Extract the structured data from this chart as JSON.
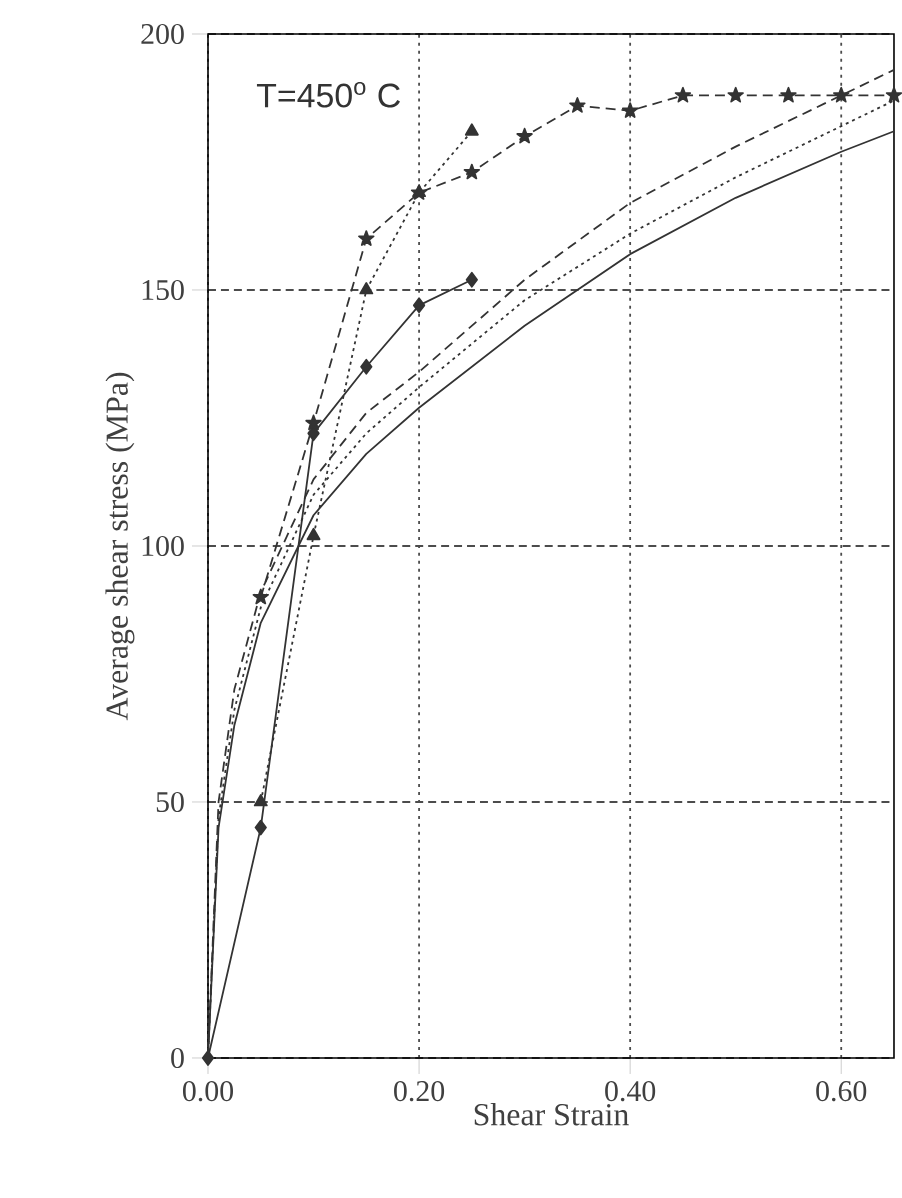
{
  "chart_data": {
    "type": "line",
    "xlabel": "Shear Strain",
    "ylabel": "Average shear stress (MPa)",
    "annotations": [
      "T=450$^{o}$ C"
    ],
    "xlim": [
      0,
      0.65
    ],
    "ylim": [
      0,
      200
    ],
    "xticks": [
      {
        "value": 0,
        "label": "0.00"
      },
      {
        "value": 0.2,
        "label": "0.20"
      },
      {
        "value": 0.4,
        "label": "0.40"
      },
      {
        "value": 0.6,
        "label": "0.60"
      }
    ],
    "yticks": [
      0,
      50,
      100,
      150,
      200
    ],
    "grid": true,
    "series": [
      {
        "color": "#333333",
        "marker": "diamond",
        "line_style": "solid",
        "x": [
          0,
          0.05,
          0.1,
          0.15,
          0.2,
          0.25
        ],
        "values": [
          0,
          45,
          122,
          135,
          147,
          152
        ]
      },
      {
        "color": "#333333",
        "marker": "star",
        "line_style": "dashed",
        "x": [
          0.05,
          0.1,
          0.15,
          0.2,
          0.25,
          0.3,
          0.35,
          0.4,
          0.45,
          0.5,
          0.55,
          0.6,
          0.65
        ],
        "values": [
          90,
          124,
          160,
          169,
          173,
          180,
          186,
          185,
          188,
          188,
          188,
          188,
          188
        ]
      },
      {
        "color": "#333333",
        "marker": "triangle",
        "line_style": "dotted",
        "x": [
          0.05,
          0.1,
          0.15,
          0.2,
          0.25
        ],
        "values": [
          50,
          102,
          150,
          169,
          181
        ]
      },
      {
        "color": "#333333",
        "marker": "none",
        "line_style": "solid",
        "x": [
          0,
          0.01,
          0.025,
          0.05,
          0.1,
          0.15,
          0.2,
          0.3,
          0.4,
          0.5,
          0.6,
          0.65
        ],
        "values": [
          0,
          45,
          65,
          85,
          106,
          118,
          127,
          143,
          157,
          168,
          177,
          181
        ]
      },
      {
        "color": "#333333",
        "marker": "none",
        "line_style": "dotted",
        "x": [
          0,
          0.01,
          0.025,
          0.05,
          0.1,
          0.15,
          0.2,
          0.3,
          0.4,
          0.5,
          0.6,
          0.65
        ],
        "values": [
          0,
          47,
          68,
          88,
          110,
          122,
          131,
          148,
          161,
          172,
          182,
          187
        ]
      },
      {
        "color": "#333333",
        "marker": "none",
        "line_style": "dashed",
        "x": [
          0,
          0.01,
          0.025,
          0.05,
          0.1,
          0.15,
          0.2,
          0.3,
          0.4,
          0.5,
          0.6,
          0.65
        ],
        "values": [
          0,
          50,
          72,
          91,
          113,
          126,
          134,
          152,
          167,
          178,
          188,
          193
        ]
      }
    ]
  }
}
